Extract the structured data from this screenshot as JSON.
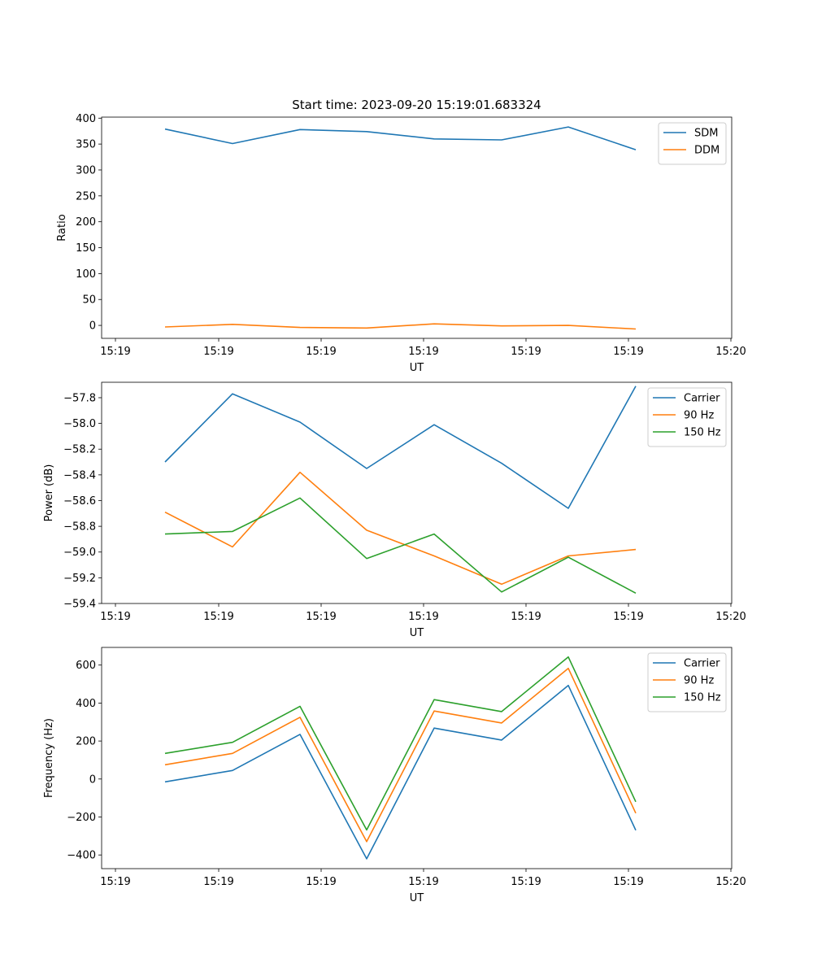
{
  "page": {
    "title": "Start time: 2023-09-20 15:19:01.683324"
  },
  "colors": {
    "blue": "#1f77b4",
    "orange": "#ff7f0e",
    "green": "#2ca02c"
  },
  "chart_data": [
    {
      "type": "line",
      "ylabel": "Ratio",
      "xlabel": "UT",
      "xtick_labels": [
        "15:19",
        "15:19",
        "15:19",
        "15:19",
        "15:19",
        "15:19",
        "15:19",
        "15:20"
      ],
      "ylim": [
        -25,
        402
      ],
      "yticks": [
        0,
        50,
        100,
        150,
        200,
        250,
        300,
        350,
        400
      ],
      "ytick_labels": [
        "0",
        "50",
        "100",
        "150",
        "200",
        "250",
        "300",
        "350",
        "400"
      ],
      "legend_position": "top-right",
      "series": [
        {
          "name": "SDM",
          "color": "#1f77b4",
          "values": [
            379,
            351,
            378,
            374,
            360,
            358,
            383,
            339
          ]
        },
        {
          "name": "DDM",
          "color": "#ff7f0e",
          "values": [
            -3,
            2,
            -4,
            -5,
            3,
            -1,
            0,
            -7
          ]
        }
      ]
    },
    {
      "type": "line",
      "ylabel": "Power (dB)",
      "xlabel": "UT",
      "xtick_labels": [
        "15:19",
        "15:19",
        "15:19",
        "15:19",
        "15:19",
        "15:19",
        "15:19",
        "15:20"
      ],
      "ylim": [
        -59.4,
        -57.68
      ],
      "yticks": [
        -59.4,
        -59.2,
        -59.0,
        -58.8,
        -58.6,
        -58.4,
        -58.2,
        -58.0,
        -57.8
      ],
      "ytick_labels": [
        "−59.4",
        "−59.2",
        "−59.0",
        "−58.8",
        "−58.6",
        "−58.4",
        "−58.2",
        "−58.0",
        "−57.8"
      ],
      "legend_position": "top-right",
      "series": [
        {
          "name": "Carrier",
          "color": "#1f77b4",
          "values": [
            -58.3,
            -57.77,
            -57.99,
            -58.35,
            -58.01,
            -58.31,
            -58.66,
            -57.71
          ]
        },
        {
          "name": "90 Hz",
          "color": "#ff7f0e",
          "values": [
            -58.69,
            -58.96,
            -58.38,
            -58.83,
            -59.03,
            -59.25,
            -59.03,
            -58.98
          ]
        },
        {
          "name": "150 Hz",
          "color": "#2ca02c",
          "values": [
            -58.86,
            -58.84,
            -58.58,
            -59.05,
            -58.86,
            -59.31,
            -59.04,
            -59.32
          ]
        }
      ]
    },
    {
      "type": "line",
      "ylabel": "Frequency (Hz)",
      "xlabel": "UT",
      "xtick_labels": [
        "15:19",
        "15:19",
        "15:19",
        "15:19",
        "15:19",
        "15:19",
        "15:19",
        "15:20"
      ],
      "ylim": [
        -472,
        693
      ],
      "yticks": [
        -400,
        -200,
        0,
        200,
        400,
        600
      ],
      "ytick_labels": [
        "−400",
        "−200",
        "0",
        "200",
        "400",
        "600"
      ],
      "legend_position": "top-right",
      "series": [
        {
          "name": "Carrier",
          "color": "#1f77b4",
          "values": [
            -15,
            45,
            235,
            -420,
            268,
            205,
            493,
            -270
          ]
        },
        {
          "name": "90 Hz",
          "color": "#ff7f0e",
          "values": [
            75,
            135,
            325,
            -330,
            358,
            295,
            583,
            -180
          ]
        },
        {
          "name": "150 Hz",
          "color": "#2ca02c",
          "values": [
            135,
            193,
            383,
            -268,
            418,
            355,
            643,
            -120
          ]
        }
      ]
    }
  ]
}
